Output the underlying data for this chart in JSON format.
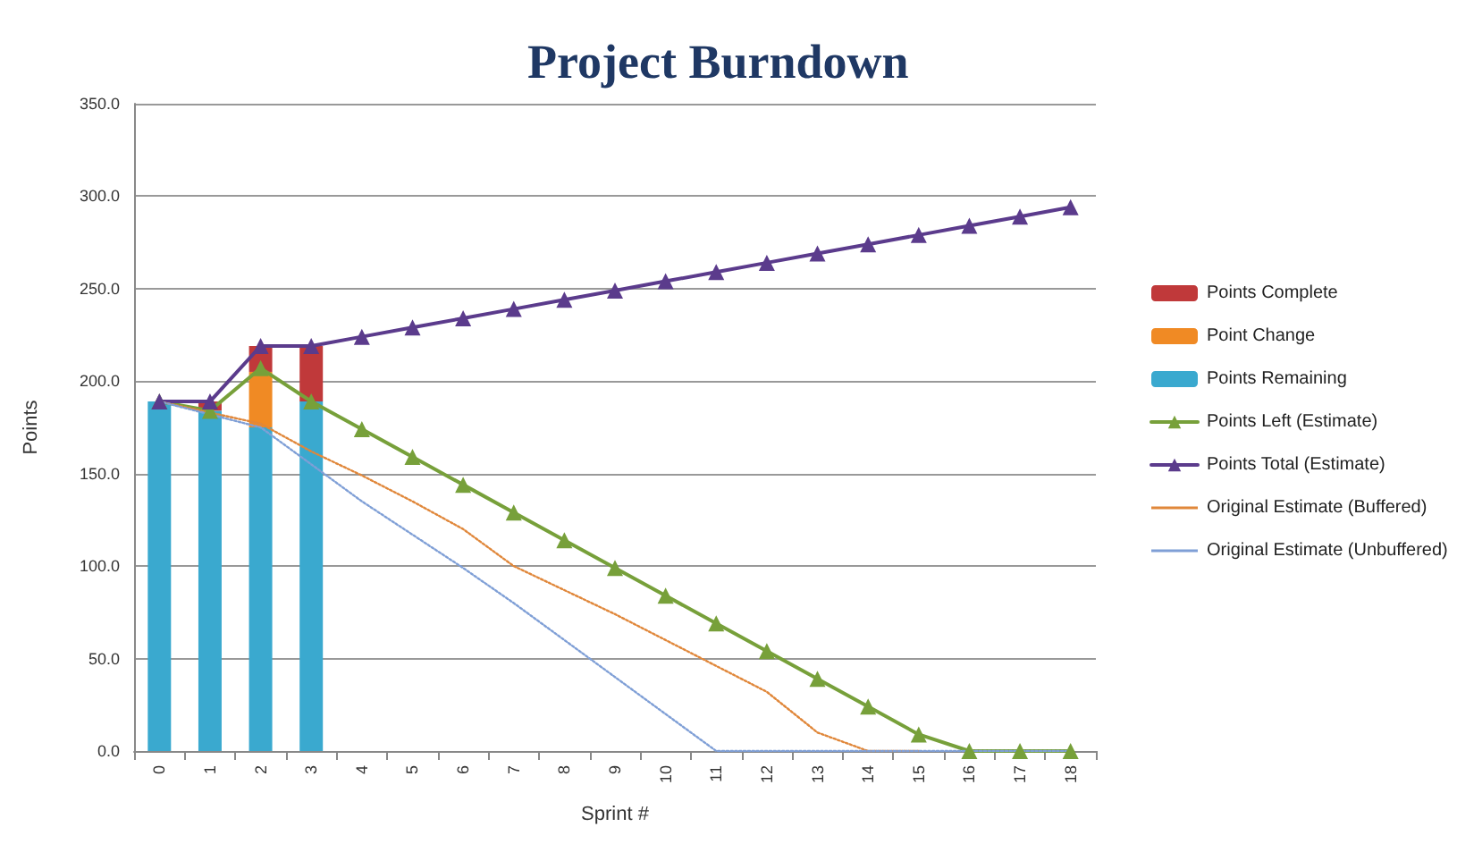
{
  "chart_data": {
    "type": "bar",
    "title": "Project Burndown",
    "xlabel": "Sprint #",
    "ylabel": "Points",
    "categories": [
      "0",
      "1",
      "2",
      "3",
      "4",
      "5",
      "6",
      "7",
      "8",
      "9",
      "10",
      "11",
      "12",
      "13",
      "14",
      "15",
      "16",
      "17",
      "18"
    ],
    "stacked": true,
    "grid": "y",
    "legend": "right",
    "ylim": [
      0,
      350
    ],
    "yticks": [
      {
        "value": 0,
        "label": "0.0"
      },
      {
        "value": 50,
        "label": "50.0"
      },
      {
        "value": 100,
        "label": "100.0"
      },
      {
        "value": 150,
        "label": "150.0"
      },
      {
        "value": 200,
        "label": "200.0"
      },
      {
        "value": 250,
        "label": "250.0"
      },
      {
        "value": 300,
        "label": "300.0"
      },
      {
        "value": 350,
        "label": "350.0"
      }
    ],
    "series": [
      {
        "name": "Points Remaining",
        "color": "#3aa9cf",
        "values": [
          189,
          184,
          175,
          189,
          null,
          null,
          null,
          null,
          null,
          null,
          null,
          null,
          null,
          null,
          null,
          null,
          null,
          null,
          null
        ]
      },
      {
        "name": "Point Change",
        "color": "#f08a24",
        "values": [
          0,
          0,
          30,
          0,
          null,
          null,
          null,
          null,
          null,
          null,
          null,
          null,
          null,
          null,
          null,
          null,
          null,
          null,
          null
        ]
      },
      {
        "name": "Points Complete",
        "color": "#c0393a",
        "values": [
          0,
          5,
          14,
          30,
          null,
          null,
          null,
          null,
          null,
          null,
          null,
          null,
          null,
          null,
          null,
          null,
          null,
          null,
          null
        ]
      },
      {
        "name": "Points Left (Estimate)",
        "type": "line",
        "color": "#77a03a",
        "marker": "triangle",
        "line_style": "solid",
        "values": [
          189,
          184,
          207,
          189,
          174,
          159,
          144,
          129,
          114,
          99,
          84,
          69,
          54,
          39,
          24,
          9,
          0,
          0,
          0
        ]
      },
      {
        "name": "Points Total (Estimate)",
        "type": "line",
        "color": "#5b3b8c",
        "marker": "triangle",
        "line_style": "solid",
        "values": [
          189,
          189,
          219,
          219,
          224,
          229,
          234,
          239,
          244,
          249,
          254,
          259,
          264,
          269,
          274,
          279,
          284,
          289,
          294
        ]
      },
      {
        "name": "Original Estimate (Buffered)",
        "type": "line",
        "color": "#e0873a",
        "marker": "none",
        "line_style": "dotted",
        "values": [
          189,
          183,
          177,
          162,
          149,
          135,
          120,
          100,
          87,
          74,
          60,
          46,
          32,
          10,
          0,
          0,
          null,
          null,
          null
        ]
      },
      {
        "name": "Original Estimate (Unbuffered)",
        "type": "line",
        "color": "#7f9fd6",
        "marker": "none",
        "line_style": "dotted",
        "values": [
          189,
          182,
          175,
          155,
          135,
          117,
          99,
          80,
          60,
          40,
          20,
          0,
          0,
          0,
          0,
          0,
          0,
          0,
          0
        ]
      }
    ]
  }
}
